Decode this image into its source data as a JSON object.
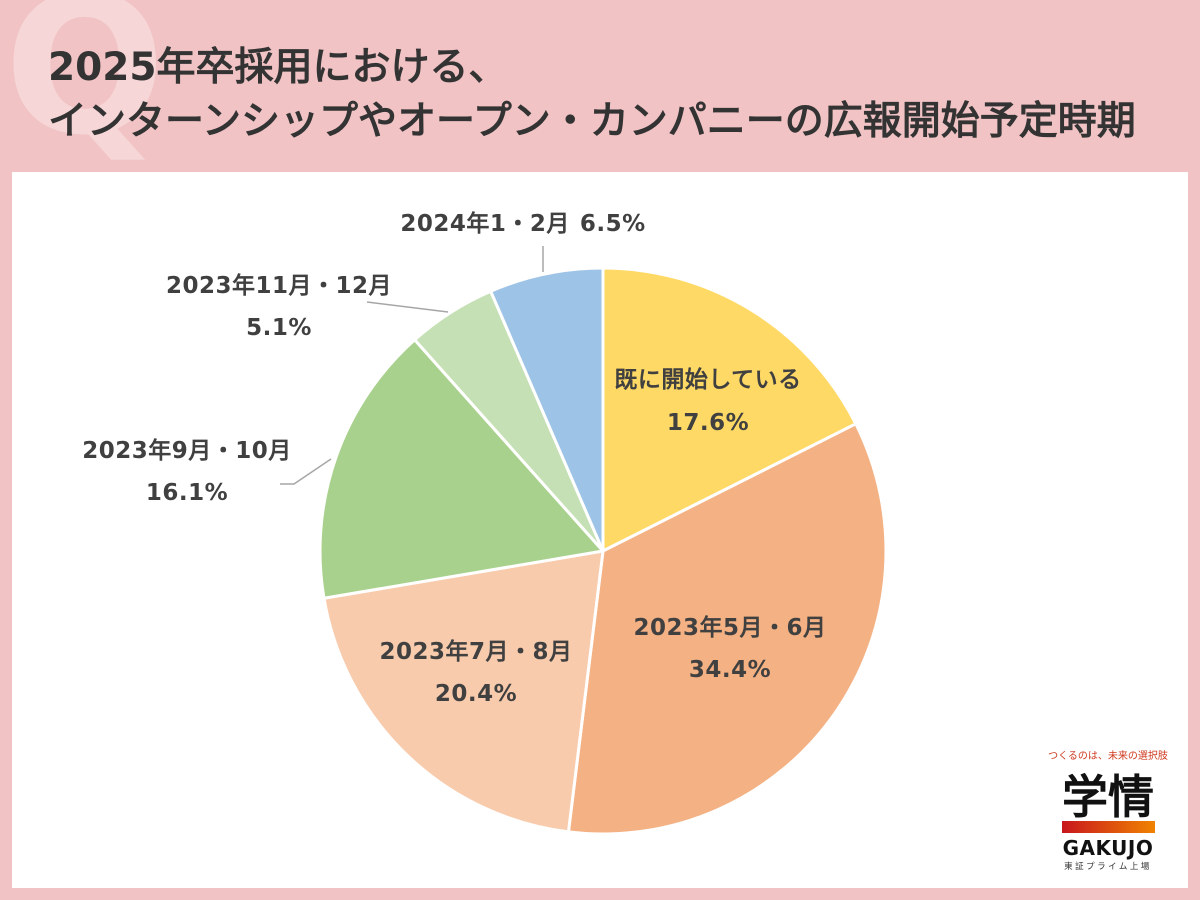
{
  "watermark": "Q",
  "colors": {
    "background": "#f1c3c5",
    "watermark": "#f6d6d7",
    "panel": "#ffffff",
    "title_text": "#333333",
    "label_text": "#404040",
    "leader_line": "#a6a6a6"
  },
  "chart_data": {
    "type": "pie",
    "title": {
      "line1": "2025年卒採用における、",
      "line2": "インターンシップやオープン・カンパニーの広報開始予定時期"
    },
    "slices": [
      {
        "label": "既に開始している",
        "value": 17.6,
        "value_label": "17.6%",
        "color": "#ffd966"
      },
      {
        "label": "2023年5月・6月",
        "value": 34.4,
        "value_label": "34.4%",
        "color": "#f4b183"
      },
      {
        "label": "2023年7月・8月",
        "value": 20.4,
        "value_label": "20.4%",
        "color": "#f8cbad"
      },
      {
        "label": "2023年9月・10月",
        "value": 16.1,
        "value_label": "16.1%",
        "color": "#a9d18e"
      },
      {
        "label": "2023年11月・12月",
        "value": 5.1,
        "value_label": "5.1%",
        "color": "#c5e0b4"
      },
      {
        "label": "2024年1・2月",
        "value": 6.5,
        "value_label": "6.5%",
        "color": "#9dc3e6"
      }
    ]
  },
  "logo": {
    "tagline": "つくるのは、未来の選択肢",
    "wordmark": "学情",
    "romaji": "GAKUJO",
    "listing": "東証プライム上場",
    "bar_gradient": [
      "#c8161d",
      "#f08300"
    ]
  }
}
